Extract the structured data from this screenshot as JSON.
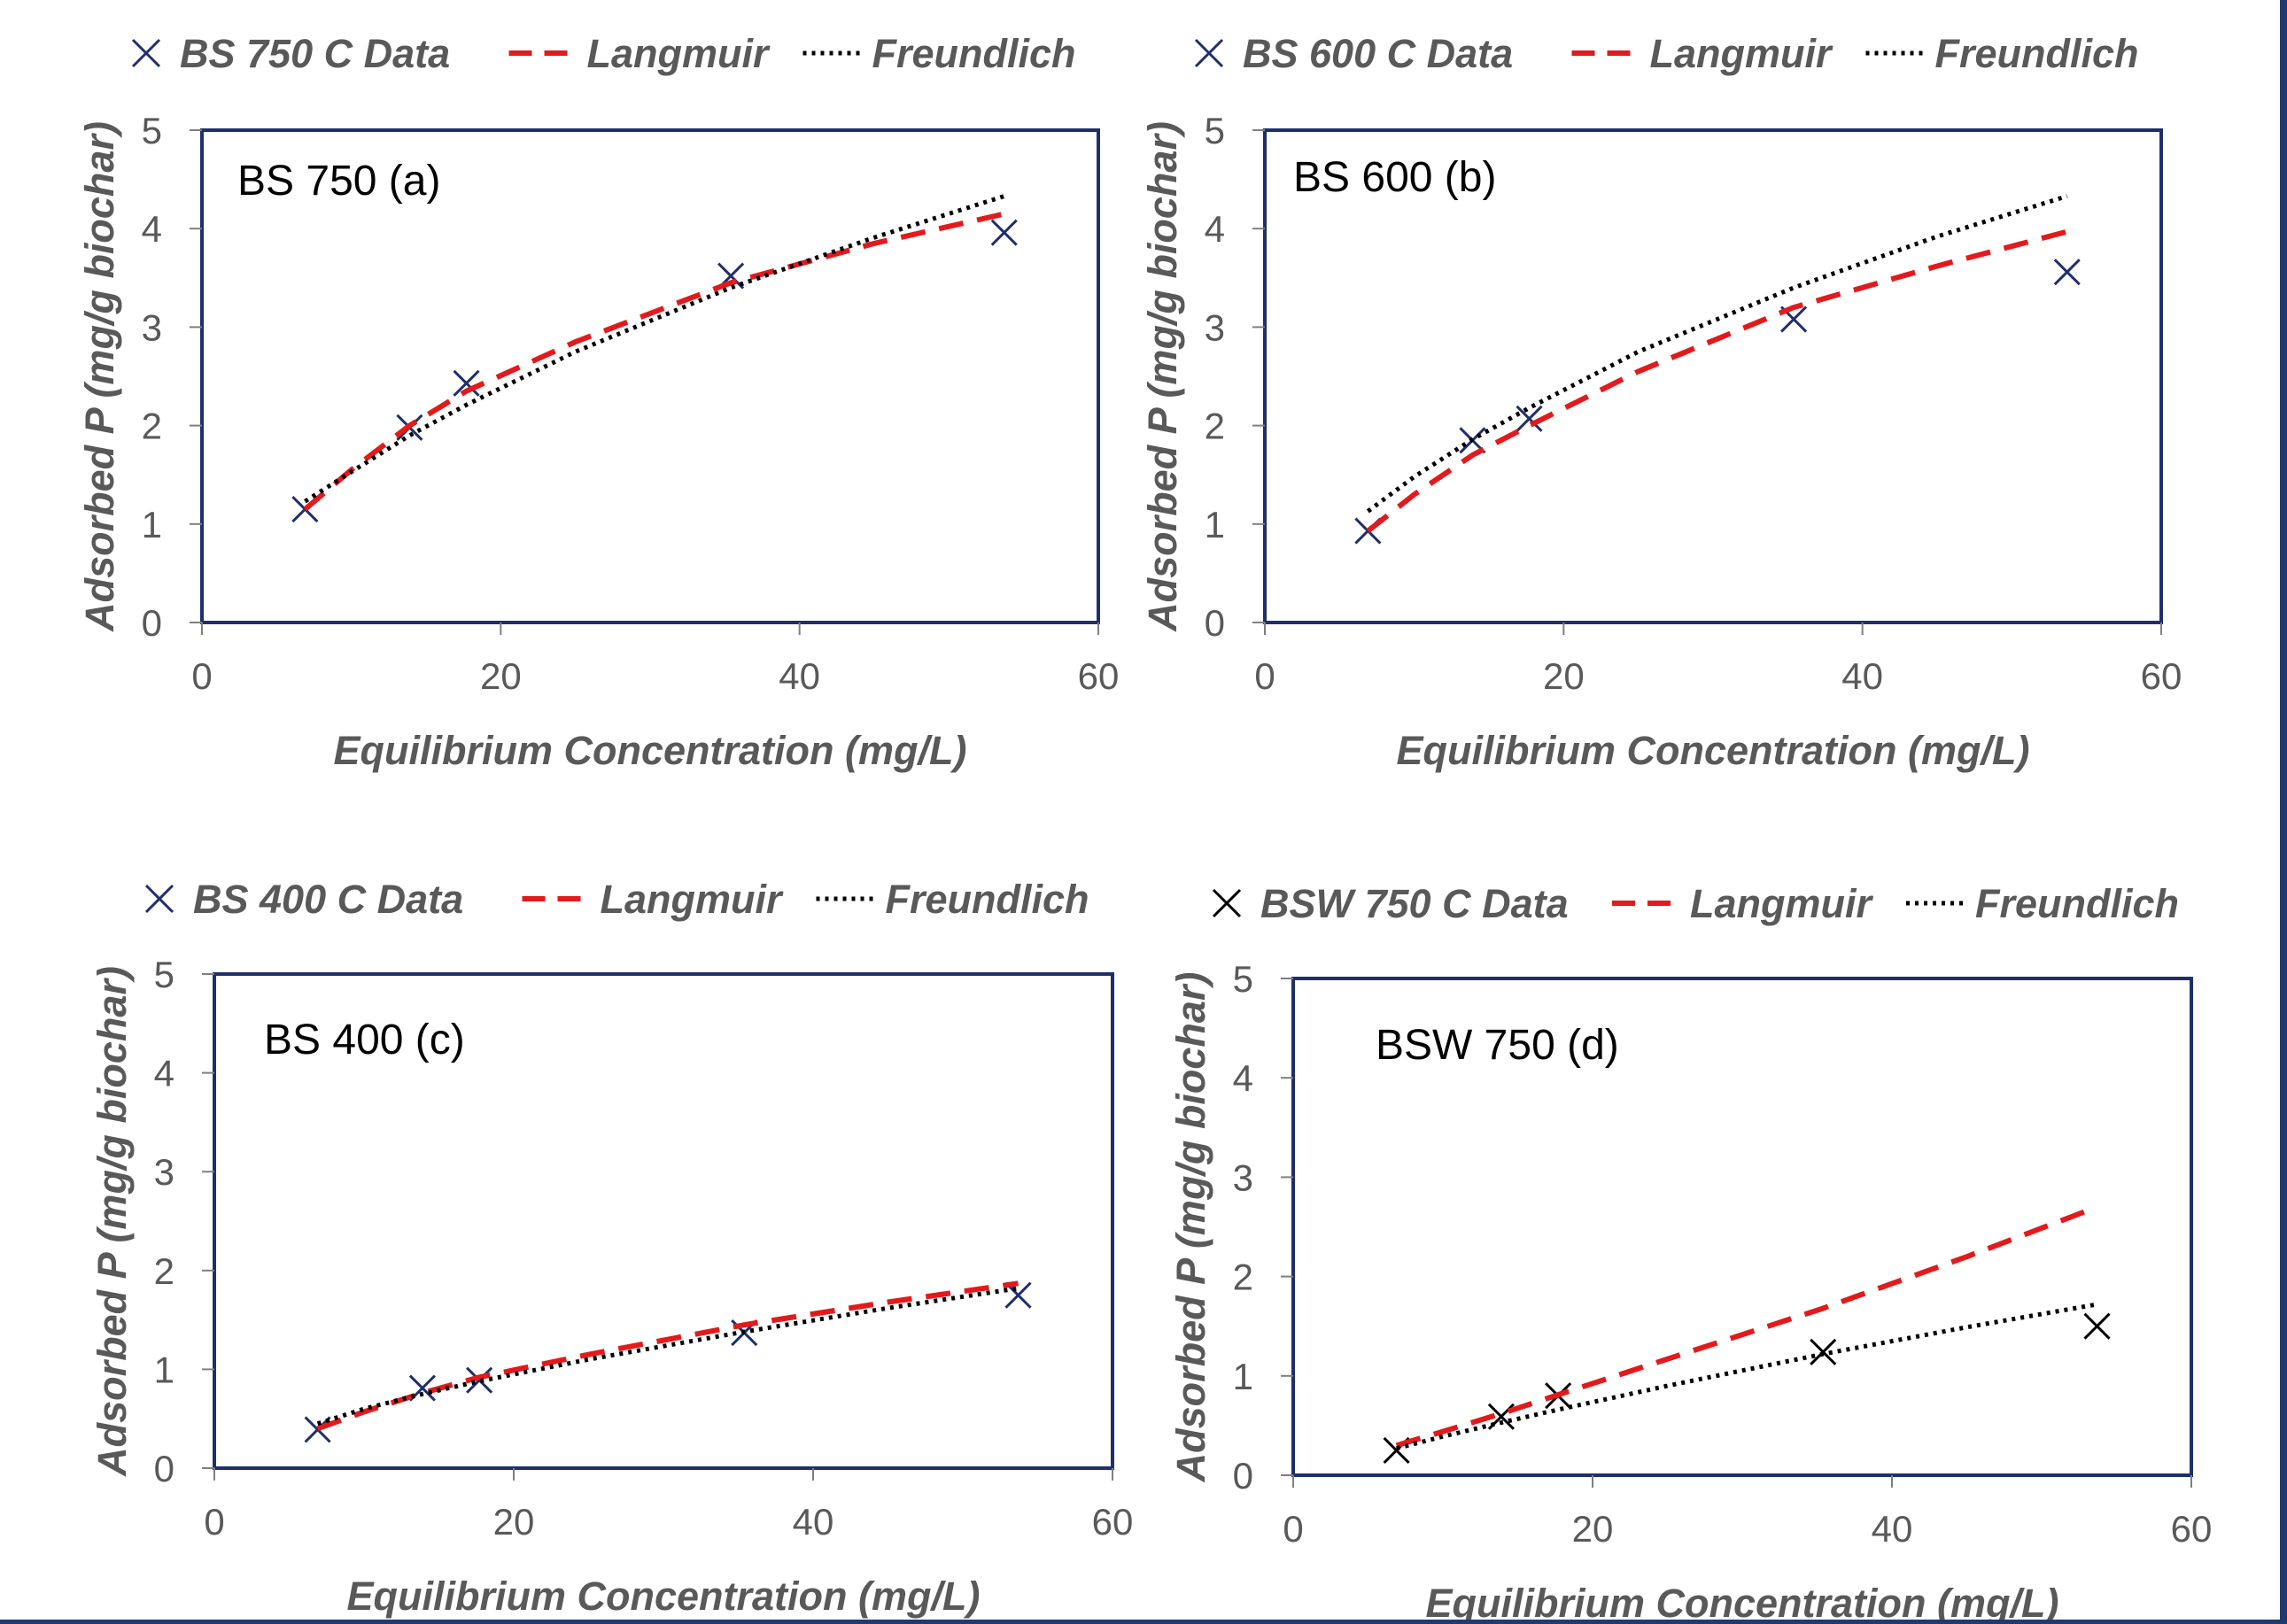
{
  "colors": {
    "background_border": "#1f3a6e",
    "plot_frame": "#1f2f6b",
    "langmuir": "#e31a1c",
    "freundlich": "#000000",
    "marker_blue": "#1f2f6b",
    "marker_black": "#000000",
    "text_gray": "#595959"
  },
  "chart_data": [
    {
      "type": "scatter",
      "panel_label": "BS 750 (a)",
      "xlabel": "Equilibrium Concentration (mg/L)",
      "ylabel": "Adsorbed P (mg/g biochar)",
      "xlim": [
        0,
        60
      ],
      "ylim": [
        0,
        5
      ],
      "xticks": [
        "0",
        "20",
        "40",
        "60"
      ],
      "yticks": [
        "0",
        "1",
        "2",
        "3",
        "4",
        "5"
      ],
      "legend": [
        "BS 750 C Data",
        "Langmuir",
        "Freundlich"
      ],
      "legend_position": "top",
      "marker_color": "#1f2f6b",
      "series": [
        {
          "name": "BS 750 C Data",
          "kind": "markers",
          "x": [
            6.9,
            13.9,
            17.7,
            35.4,
            53.7
          ],
          "y": [
            1.15,
            1.98,
            2.43,
            3.52,
            3.96
          ]
        },
        {
          "name": "Langmuir",
          "kind": "dashed",
          "x": [
            6.9,
            10,
            13.9,
            17.7,
            25,
            35.4,
            45,
            53.7
          ],
          "y": [
            1.15,
            1.55,
            2.0,
            2.35,
            2.85,
            3.45,
            3.85,
            4.15
          ]
        },
        {
          "name": "Freundlich",
          "kind": "dotted",
          "x": [
            6.9,
            10,
            13.9,
            17.7,
            25,
            35.4,
            45,
            53.7
          ],
          "y": [
            1.23,
            1.53,
            1.9,
            2.21,
            2.75,
            3.4,
            3.91,
            4.33
          ]
        }
      ]
    },
    {
      "type": "scatter",
      "panel_label": "BS 600 (b)",
      "xlabel": "Equilibrium Concentration (mg/L)",
      "ylabel": "Adsorbed P (mg/g biochar)",
      "xlim": [
        0,
        60
      ],
      "ylim": [
        0,
        5
      ],
      "xticks": [
        "0",
        "20",
        "40",
        "60"
      ],
      "yticks": [
        "0",
        "1",
        "2",
        "3",
        "4",
        "5"
      ],
      "legend": [
        "BS 600 C Data",
        "Langmuir",
        "Freundlich"
      ],
      "legend_position": "top",
      "marker_color": "#1f2f6b",
      "series": [
        {
          "name": "BS 600 C Data",
          "kind": "markers",
          "x": [
            6.9,
            13.9,
            17.7,
            35.4,
            53.7
          ],
          "y": [
            0.93,
            1.85,
            2.07,
            3.08,
            3.56
          ]
        },
        {
          "name": "Langmuir",
          "kind": "dashed",
          "x": [
            6.9,
            10,
            13.9,
            17.7,
            25,
            35.4,
            45,
            53.7
          ],
          "y": [
            0.93,
            1.3,
            1.7,
            2.0,
            2.55,
            3.2,
            3.62,
            3.97
          ]
        },
        {
          "name": "Freundlich",
          "kind": "dotted",
          "x": [
            6.9,
            10,
            13.9,
            17.7,
            25,
            35.4,
            45,
            53.7
          ],
          "y": [
            1.13,
            1.48,
            1.86,
            2.18,
            2.75,
            3.4,
            3.92,
            4.33
          ]
        }
      ]
    },
    {
      "type": "scatter",
      "panel_label": "BS 400 (c)",
      "xlabel": "Equilibrium Concentration (mg/L)",
      "ylabel": "Adsorbed P (mg/g biochar)",
      "xlim": [
        0,
        60
      ],
      "ylim": [
        0,
        5
      ],
      "xticks": [
        "0",
        "20",
        "40",
        "60"
      ],
      "yticks": [
        "0",
        "1",
        "2",
        "3",
        "4",
        "5"
      ],
      "legend": [
        "BS 400 C Data",
        "Langmuir",
        "Freundlich"
      ],
      "legend_position": "top",
      "marker_color": "#1f2f6b",
      "series": [
        {
          "name": "BS 400 C Data",
          "kind": "markers",
          "x": [
            6.9,
            13.9,
            17.7,
            35.4,
            53.7
          ],
          "y": [
            0.39,
            0.81,
            0.89,
            1.37,
            1.75
          ]
        },
        {
          "name": "Langmuir",
          "kind": "dashed",
          "x": [
            6.9,
            10,
            13.9,
            17.7,
            25,
            35.4,
            45,
            53.7
          ],
          "y": [
            0.4,
            0.57,
            0.76,
            0.92,
            1.15,
            1.45,
            1.68,
            1.87
          ]
        },
        {
          "name": "Freundlich",
          "kind": "dotted",
          "x": [
            6.9,
            10,
            13.9,
            17.7,
            25,
            35.4,
            45,
            53.7
          ],
          "y": [
            0.45,
            0.6,
            0.75,
            0.88,
            1.1,
            1.38,
            1.62,
            1.82
          ]
        }
      ]
    },
    {
      "type": "scatter",
      "panel_label": "BSW 750 (d)",
      "xlabel": "Equilibrium Concentration (mg/L)",
      "ylabel": "Adsorbed P (mg/g biochar)",
      "xlim": [
        0,
        60
      ],
      "ylim": [
        0,
        5
      ],
      "xticks": [
        "0",
        "20",
        "40",
        "60"
      ],
      "yticks": [
        "0",
        "1",
        "2",
        "3",
        "4",
        "5"
      ],
      "legend": [
        "BSW 750 C Data",
        "Langmuir",
        "Freundlich"
      ],
      "legend_position": "top",
      "marker_color": "#000000",
      "series": [
        {
          "name": "BSW 750 C Data",
          "kind": "markers",
          "x": [
            6.9,
            13.9,
            17.7,
            35.4,
            53.7
          ],
          "y": [
            0.25,
            0.59,
            0.8,
            1.24,
            1.5
          ]
        },
        {
          "name": "Langmuir",
          "kind": "dashed",
          "x": [
            6.9,
            10,
            13.9,
            17.7,
            25,
            35.4,
            45,
            53.7
          ],
          "y": [
            0.3,
            0.44,
            0.62,
            0.81,
            1.17,
            1.68,
            2.2,
            2.7
          ]
        },
        {
          "name": "Freundlich",
          "kind": "dotted",
          "x": [
            6.9,
            10,
            13.9,
            17.7,
            25,
            35.4,
            45,
            53.7
          ],
          "y": [
            0.27,
            0.39,
            0.53,
            0.66,
            0.9,
            1.22,
            1.49,
            1.72
          ]
        }
      ]
    }
  ]
}
